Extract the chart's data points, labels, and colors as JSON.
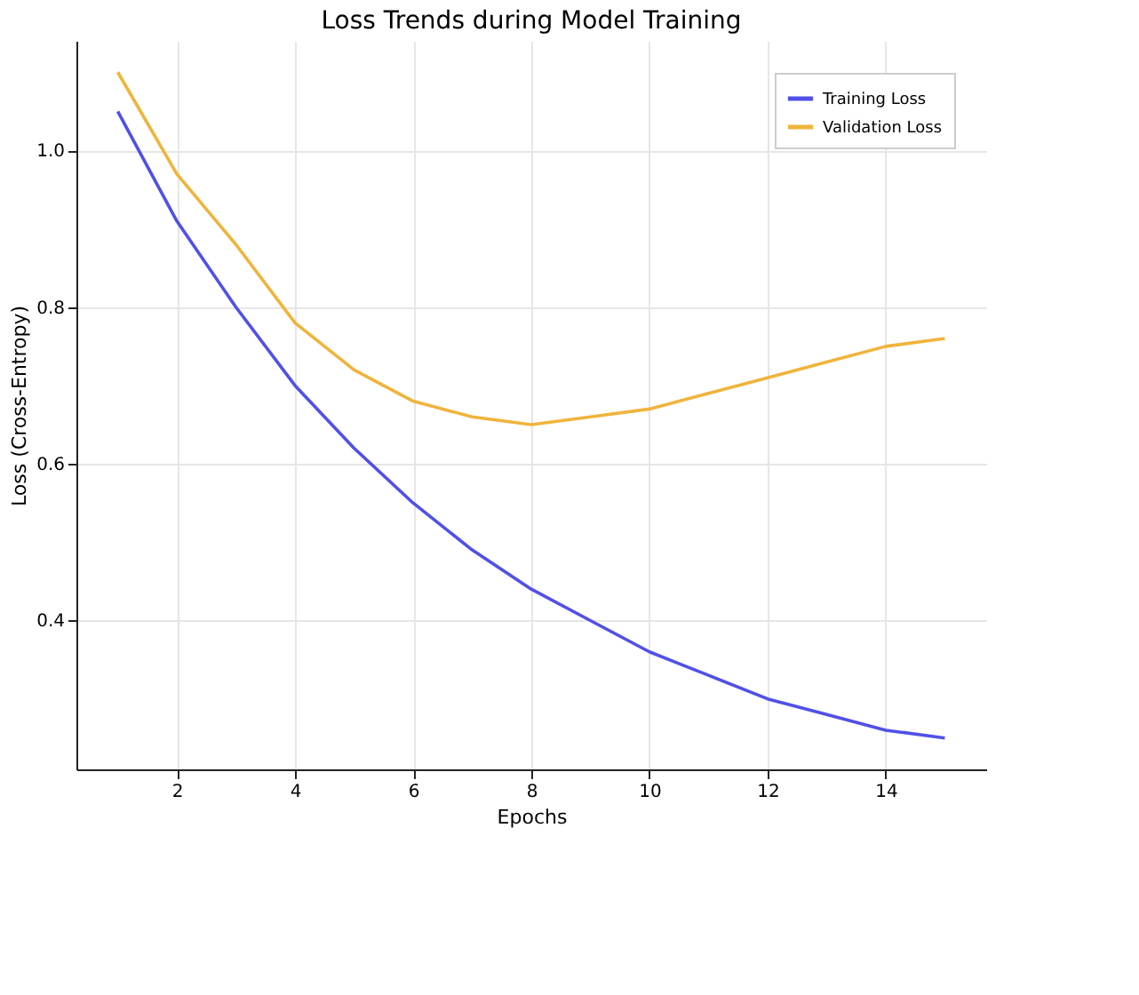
{
  "chart_data": {
    "type": "line",
    "title": "Loss Trends during Model Training",
    "xlabel": "Epochs",
    "ylabel": "Loss (Cross-Entropy)",
    "x": [
      1,
      2,
      3,
      4,
      5,
      6,
      7,
      8,
      9,
      10,
      11,
      12,
      13,
      14,
      15
    ],
    "series": [
      {
        "name": "Training Loss",
        "color": "#5050e8",
        "values": [
          1.05,
          0.91,
          0.8,
          0.7,
          0.62,
          0.55,
          0.49,
          0.44,
          0.4,
          0.36,
          0.33,
          0.3,
          0.28,
          0.26,
          0.25
        ]
      },
      {
        "name": "Validation Loss",
        "color": "#f0b43c",
        "values": [
          1.1,
          0.97,
          0.88,
          0.78,
          0.72,
          0.68,
          0.66,
          0.65,
          0.66,
          0.67,
          0.69,
          0.71,
          0.73,
          0.75,
          0.76
        ]
      }
    ],
    "xlim": [
      0.3,
      15.7
    ],
    "xticks": [
      2,
      4,
      6,
      8,
      10,
      12,
      14
    ],
    "ylim": [
      0.21,
      1.14
    ],
    "yticks": [
      0.4,
      0.6,
      0.8,
      {
        "value": 1,
        "label": "1.0"
      }
    ],
    "grid": true,
    "legend": "top right",
    "line_style": "solid",
    "marker": "none"
  }
}
